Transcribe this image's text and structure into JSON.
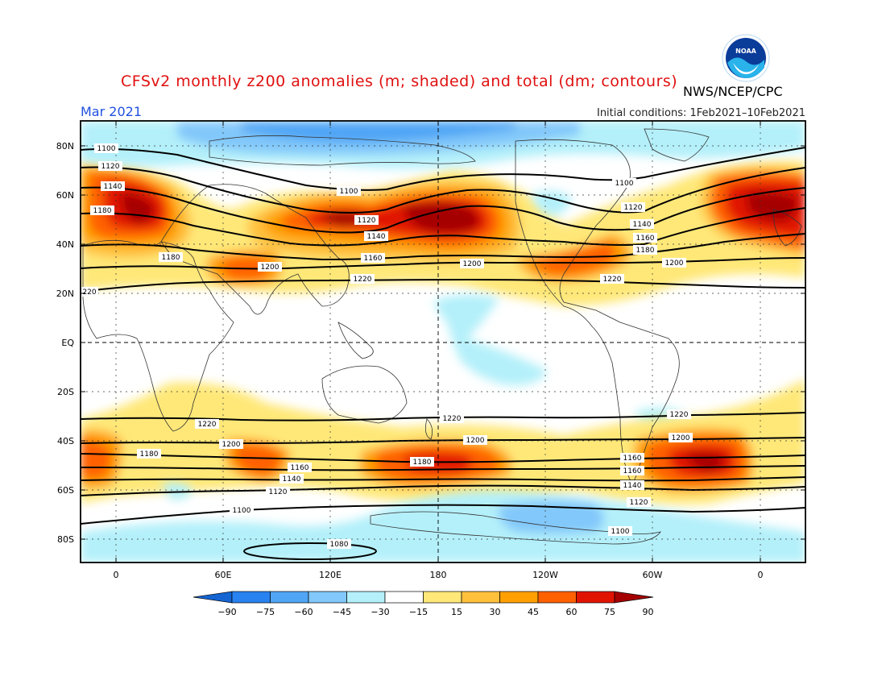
{
  "title": "CFSv2 monthly z200 anomalies (m; shaded) and total (dm; contours)",
  "agency": "NWS/NCEP/CPC",
  "month": "Mar 2021",
  "init_conditions": "Initial conditions: 1Feb2021–10Feb2021",
  "logo_icon": "noaa-logo-icon",
  "lat_labels": [
    "80N",
    "60N",
    "40N",
    "20N",
    "EQ",
    "20S",
    "40S",
    "60S",
    "80S"
  ],
  "lon_labels": [
    "0",
    "60E",
    "120E",
    "180",
    "120W",
    "60W",
    "0"
  ],
  "colorbar": {
    "labels": [
      "−90",
      "−75",
      "−60",
      "−45",
      "−30",
      "−15",
      "15",
      "30",
      "45",
      "60",
      "75",
      "90"
    ],
    "colors": [
      "#1464d2",
      "#2882f0",
      "#50a5f5",
      "#82c8fa",
      "#b4f0fa",
      "#ffffff",
      "#ffe878",
      "#ffc03c",
      "#ffa000",
      "#ff6000",
      "#e11400",
      "#a50000"
    ]
  },
  "contour_labels": {
    "nh": [
      "1100",
      "1120",
      "1140",
      "1180",
      "1100",
      "1120",
      "1140",
      "1160",
      "1180",
      "1200",
      "1220",
      "1200",
      "1100",
      "1120",
      "1140",
      "1160",
      "1180",
      "1200",
      "1220",
      "220"
    ],
    "sh": [
      "1220",
      "1200",
      "1180",
      "1160",
      "1140",
      "1120",
      "1100",
      "1220",
      "1200",
      "1180",
      "1220",
      "1200",
      "1160",
      "1160",
      "1140",
      "1120",
      "1100",
      "1080"
    ]
  }
}
